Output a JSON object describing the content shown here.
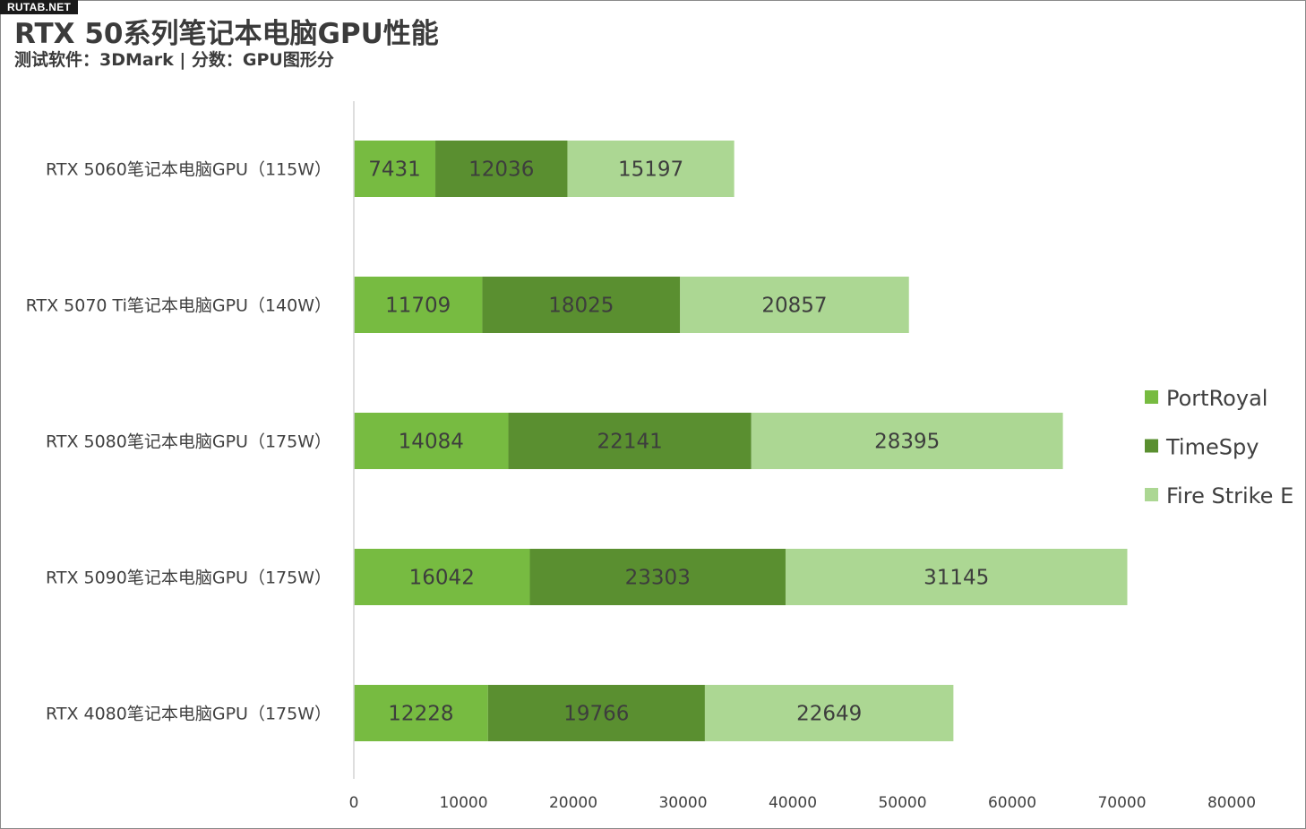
{
  "watermark": "RUTAB.NET",
  "chart_data": {
    "type": "bar",
    "orientation": "horizontal",
    "stacked": true,
    "title": "RTX 50系列笔记本电脑GPU性能",
    "subtitle": "测试软件：3DMark | 分数：GPU图形分",
    "categories": [
      "RTX 5060笔记本电脑GPU（115W）",
      "RTX 5070 Ti笔记本电脑GPU（140W）",
      "RTX 5080笔记本电脑GPU（175W）",
      "RTX 5090笔记本电脑GPU（175W）",
      "RTX 4080笔记本电脑GPU（175W）"
    ],
    "series": [
      {
        "name": "PortRoyal",
        "color": "#77bb41",
        "values": [
          7431,
          11709,
          14084,
          16042,
          12228
        ]
      },
      {
        "name": "TimeSpy",
        "color": "#5a8f30",
        "values": [
          12036,
          18025,
          22141,
          23303,
          19766
        ]
      },
      {
        "name": "Fire Strike E",
        "color": "#acd793",
        "values": [
          15197,
          20857,
          28395,
          31145,
          22649
        ]
      }
    ],
    "xlim": [
      0,
      80000
    ],
    "xticks": [
      0,
      10000,
      20000,
      30000,
      40000,
      50000,
      60000,
      70000,
      80000
    ],
    "legend_position": "right",
    "grid": false,
    "data_labels": true
  }
}
